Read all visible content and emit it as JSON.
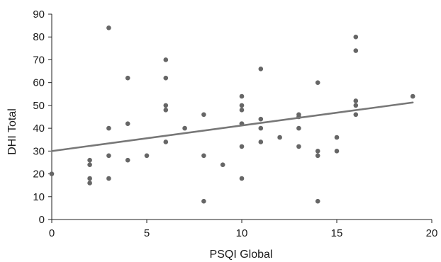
{
  "chart_data": {
    "type": "scatter",
    "title": "",
    "xlabel": "PSQI Global",
    "ylabel": "DHI Total",
    "xlim": [
      0,
      20
    ],
    "ylim": [
      0,
      90
    ],
    "xticks": [
      0,
      5,
      10,
      15,
      20
    ],
    "yticks": [
      0,
      10,
      20,
      30,
      40,
      50,
      60,
      70,
      80,
      90
    ],
    "grid": false,
    "legend": "none",
    "point_color": "#666666",
    "line_color": "#777777",
    "axis_color": "#222222",
    "points": [
      [
        0,
        20
      ],
      [
        2,
        26
      ],
      [
        2,
        24
      ],
      [
        2,
        18
      ],
      [
        2,
        16
      ],
      [
        3,
        84
      ],
      [
        3,
        40
      ],
      [
        3,
        28
      ],
      [
        3,
        18
      ],
      [
        4,
        62
      ],
      [
        4,
        42
      ],
      [
        4,
        26
      ],
      [
        5,
        28
      ],
      [
        6,
        70
      ],
      [
        6,
        62
      ],
      [
        6,
        50
      ],
      [
        6,
        48
      ],
      [
        6,
        34
      ],
      [
        7,
        40
      ],
      [
        8,
        46
      ],
      [
        8,
        28
      ],
      [
        8,
        8
      ],
      [
        9,
        24
      ],
      [
        10,
        54
      ],
      [
        10,
        50
      ],
      [
        10,
        48
      ],
      [
        10,
        42
      ],
      [
        10,
        42
      ],
      [
        10,
        32
      ],
      [
        10,
        18
      ],
      [
        11,
        66
      ],
      [
        11,
        44
      ],
      [
        11,
        40
      ],
      [
        11,
        34
      ],
      [
        12,
        36
      ],
      [
        13,
        46
      ],
      [
        13,
        45
      ],
      [
        13,
        40
      ],
      [
        13,
        32
      ],
      [
        14,
        60
      ],
      [
        14,
        30
      ],
      [
        14,
        28
      ],
      [
        14,
        8
      ],
      [
        15,
        36
      ],
      [
        15,
        30
      ],
      [
        16,
        80
      ],
      [
        16,
        74
      ],
      [
        16,
        52
      ],
      [
        16,
        50
      ],
      [
        16,
        46
      ],
      [
        19,
        54
      ]
    ],
    "trendline": {
      "x": [
        0,
        19
      ],
      "y": [
        30,
        51.3
      ]
    }
  }
}
